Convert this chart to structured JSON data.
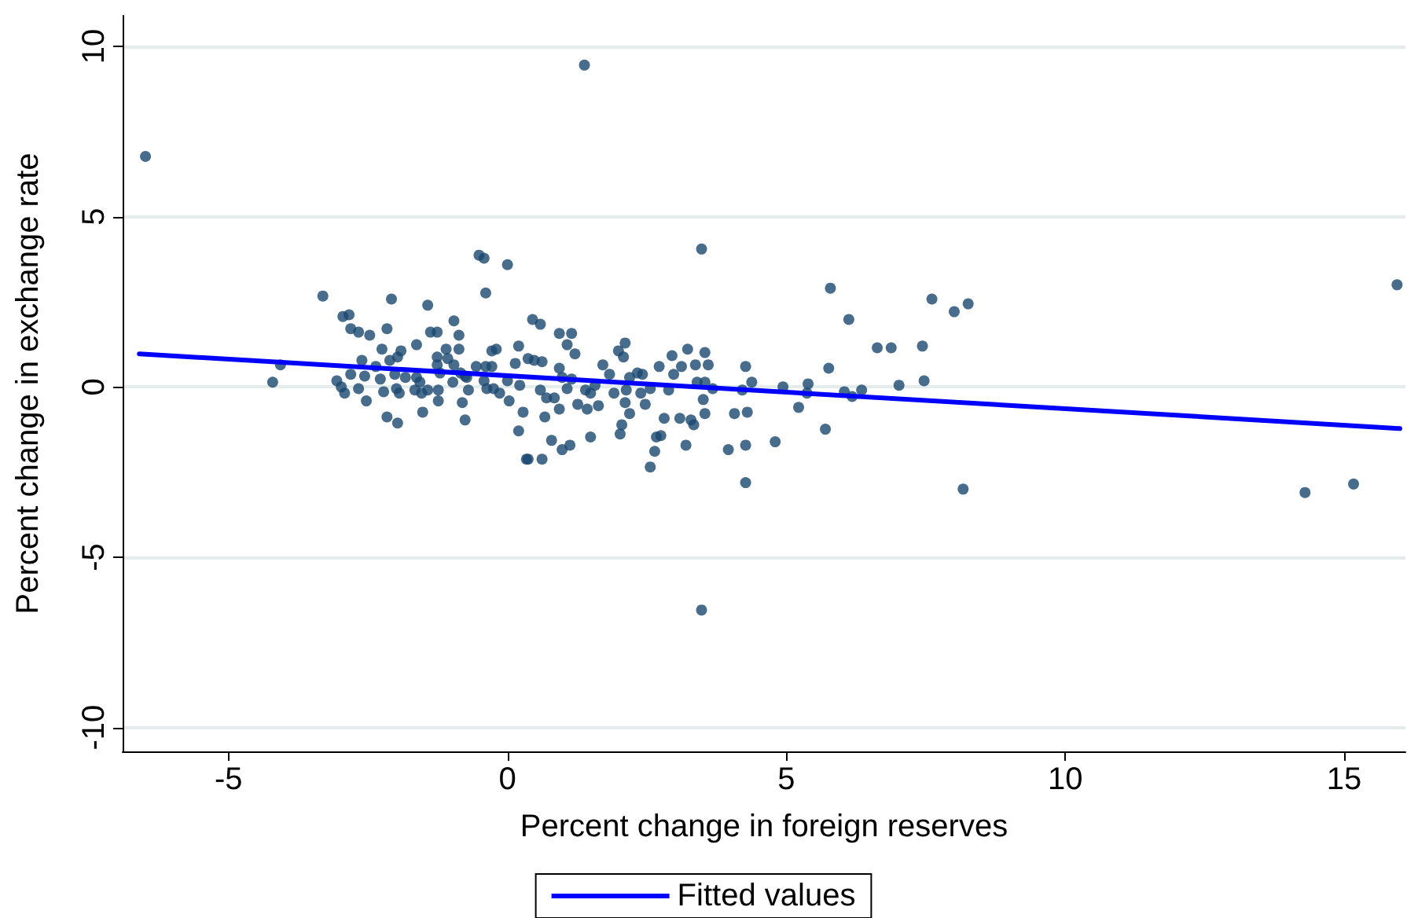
{
  "chart_data": {
    "type": "scatter",
    "xlabel": "Percent change in foreign reserves",
    "ylabel": "Percent change in exchange rate",
    "xlim": [
      -6.9,
      16.1
    ],
    "ylim": [
      -10.7,
      10.9
    ],
    "xticks": [
      -5,
      0,
      5,
      10,
      15
    ],
    "yticks": [
      -10,
      -5,
      0,
      5,
      10
    ],
    "grid": "y",
    "legend": "bottom",
    "marker": "circle",
    "series": [
      {
        "color": "#1a476f",
        "x": [
          -4.21,
          -4.07,
          -3.31,
          -2.95,
          -2.84,
          -2.81,
          -2.67,
          -2.47,
          -2.61,
          -3.06,
          -2.98,
          -2.92,
          -2.81,
          -2.67,
          -2.53,
          -2.56,
          -2.36,
          -2.28,
          -2.25,
          -2.22,
          -2.16,
          -2.08,
          -2.16,
          -2.11,
          -1.97,
          -1.91,
          -2.02,
          -1.99,
          -1.94,
          -1.97,
          -1.83,
          -1.63,
          -1.63,
          -1.57,
          -1.66,
          -1.54,
          -1.52,
          -1.43,
          -1.38,
          -1.26,
          -1.26,
          -1.26,
          -1.21,
          -1.43,
          -1.24,
          -1.24,
          -1.1,
          -1.07,
          -0.96,
          -0.87,
          -0.87,
          -0.96,
          -0.98,
          -0.84,
          -0.76,
          -0.7,
          -0.81,
          -0.76,
          -0.73,
          -0.56,
          -0.51,
          -0.42,
          -0.39,
          -0.42,
          -0.39,
          -0.28,
          -0.28,
          -0.2,
          -0.37,
          -0.25,
          -0.14,
          0,
          0,
          0.03,
          0.2,
          0.14,
          0.22,
          0.28,
          0.2,
          0.34,
          0.37,
          0.45,
          0.59,
          0.48,
          0.62,
          0.93,
          1.15,
          1.07,
          1.21,
          0.93,
          0.98,
          1.15,
          1.07,
          0.59,
          0.7,
          0.84,
          0.93,
          0.67,
          1.26,
          1.4,
          1.49,
          1.57,
          1.71,
          1.83,
          1.43,
          1.63,
          1.91,
          1.99,
          2.11,
          2.08,
          2.19,
          2.13,
          2.11,
          2.19,
          2.05,
          2.02,
          2.33,
          2.42,
          2.39,
          2.47,
          2.56,
          2.72,
          2.95,
          2.98,
          3.12,
          3.23,
          3.54,
          3.37,
          3.6,
          3.4,
          3.54,
          3.68,
          2.89,
          2.81,
          3.09,
          3.29,
          3.34,
          3.54,
          3.51,
          3.2,
          2.67,
          2.75,
          2.64,
          2.56,
          3.96,
          4.27,
          4.27,
          4.27,
          4.38,
          4.21,
          4.07,
          4.3,
          4.8,
          4.94,
          5.22,
          1.49,
          0.98,
          1.12,
          0.79,
          0.62,
          0.37,
          5.79,
          6.12,
          6.63,
          6.88,
          7.44,
          7.61,
          8.01,
          8.26,
          5.76,
          5.39,
          5.37,
          5.7,
          6.04,
          6.18,
          6.35,
          7.02,
          7.47,
          -6.49,
          1.38,
          3.48,
          3.48,
          15.95,
          8.17,
          14.3,
          15.17
        ],
        "values": [
          0.14,
          0.65,
          2.67,
          2.07,
          2.12,
          1.71,
          1.61,
          1.52,
          0.78,
          0.18,
          0,
          -0.18,
          0.37,
          -0.05,
          -0.41,
          0.32,
          0.6,
          0.23,
          1.11,
          -0.14,
          -0.88,
          2.58,
          1.71,
          0.78,
          0.88,
          1.06,
          0.37,
          -0.05,
          -0.18,
          -1.06,
          0.28,
          1.24,
          0.28,
          0.14,
          -0.09,
          -0.18,
          -0.74,
          2.4,
          1.61,
          1.61,
          0.88,
          0.65,
          0.41,
          -0.09,
          -0.09,
          -0.41,
          1.11,
          0.83,
          1.94,
          1.52,
          1.11,
          0.65,
          0.14,
          0.41,
          0.32,
          -0.09,
          -0.46,
          -0.97,
          0.28,
          0.6,
          3.87,
          3.78,
          2.76,
          0.18,
          0.6,
          0.6,
          1.06,
          1.11,
          -0.05,
          -0.05,
          -0.18,
          3.59,
          0.18,
          -0.41,
          1.2,
          0.69,
          0.05,
          -0.74,
          -1.29,
          -2.12,
          0.83,
          1.98,
          1.84,
          0.78,
          0.74,
          1.57,
          1.57,
          1.24,
          0.97,
          0.55,
          0.28,
          0.23,
          -0.05,
          -0.09,
          -0.32,
          -0.32,
          -0.65,
          -0.88,
          -0.51,
          -0.09,
          -0.18,
          0.05,
          0.65,
          0.37,
          -0.65,
          -0.55,
          -0.18,
          1.06,
          1.29,
          0.88,
          0.28,
          -0.09,
          -0.46,
          -0.78,
          -1.11,
          -1.38,
          0.41,
          0.37,
          -0.18,
          -0.51,
          -0.05,
          0.6,
          0.92,
          0.37,
          0.6,
          1.11,
          1.01,
          0.65,
          0.65,
          0.14,
          0.14,
          -0.05,
          -0.09,
          -0.92,
          -0.92,
          -0.97,
          -1.11,
          -0.78,
          -0.37,
          -1.71,
          -1.47,
          -1.43,
          -1.89,
          -2.35,
          -1.84,
          -1.71,
          -2.81,
          0.6,
          0.14,
          -0.09,
          -0.78,
          -0.74,
          -1.61,
          0,
          -0.6,
          -1.47,
          -1.84,
          -1.71,
          -1.57,
          -2.12,
          -2.12,
          2.9,
          1.98,
          1.15,
          1.15,
          1.2,
          2.58,
          2.21,
          2.44,
          0.55,
          0.09,
          -0.18,
          -1.24,
          -0.14,
          -0.28,
          -0.09,
          0.05,
          0.18,
          6.77,
          9.45,
          4.05,
          -6.55,
          3.0,
          -3.0,
          -3.1,
          -2.85
        ]
      },
      {
        "type": "line",
        "name": "Fitted values",
        "color": "#0000ff",
        "line_style": "solid",
        "marker": "none",
        "x": [
          -6.6,
          16
        ],
        "values": [
          0.97,
          -1.22
        ]
      }
    ]
  }
}
